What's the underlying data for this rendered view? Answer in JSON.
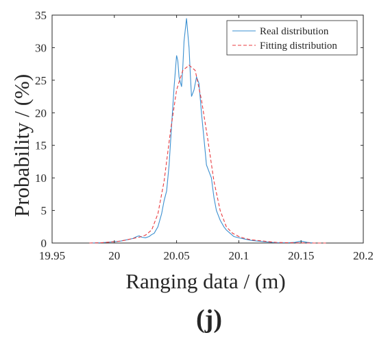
{
  "chart_data": {
    "type": "line",
    "panel_label": "(j)",
    "xlabel": "Ranging data / (m)",
    "ylabel": "Probability / (%)",
    "xlim": [
      19.95,
      20.2
    ],
    "ylim": [
      0,
      35
    ],
    "x_ticks": [
      19.95,
      20,
      20.05,
      20.1,
      20.15,
      20.2
    ],
    "x_tick_labels": [
      "19.95",
      "20",
      "20.05",
      "20.1",
      "20.15",
      "20.2"
    ],
    "y_ticks": [
      0,
      5,
      10,
      15,
      20,
      25,
      30,
      35
    ],
    "y_tick_labels": [
      "0",
      "5",
      "10",
      "15",
      "20",
      "25",
      "30",
      "35"
    ],
    "grid": false,
    "legend_position": "top-right",
    "series": [
      {
        "name": "Real distribution",
        "color": "#3a8fd0",
        "style": "solid",
        "x": [
          19.98,
          19.99,
          20.0,
          20.005,
          20.01,
          20.015,
          20.018,
          20.02,
          20.022,
          20.025,
          20.028,
          20.03,
          20.032,
          20.035,
          20.038,
          20.04,
          20.042,
          20.044,
          20.046,
          20.048,
          20.05,
          20.051,
          20.052,
          20.054,
          20.055,
          20.056,
          20.058,
          20.06,
          20.061,
          20.062,
          20.064,
          20.066,
          20.068,
          20.07,
          20.072,
          20.074,
          20.076,
          20.078,
          20.08,
          20.082,
          20.085,
          20.088,
          20.09,
          20.093,
          20.096,
          20.1,
          20.105,
          20.11,
          20.12,
          20.13,
          20.14,
          20.145,
          20.15,
          20.155,
          20.16
        ],
        "y": [
          0,
          0.05,
          0.2,
          0.3,
          0.5,
          0.7,
          1.0,
          1.1,
          0.9,
          0.8,
          1.0,
          1.3,
          1.5,
          2.5,
          4.5,
          6.5,
          8.0,
          12.0,
          18.0,
          24.0,
          28.8,
          28.0,
          25.5,
          24.0,
          27.0,
          31.0,
          34.5,
          30.0,
          26.0,
          22.5,
          23.5,
          25.5,
          24.5,
          20.0,
          16.0,
          12.0,
          11.0,
          10.0,
          7.0,
          5.0,
          3.5,
          2.5,
          2.0,
          1.5,
          1.0,
          0.8,
          0.6,
          0.4,
          0.2,
          0.05,
          0.05,
          0.1,
          0.3,
          0.1,
          0
        ]
      },
      {
        "name": "Fitting distribution",
        "color": "#e8383d",
        "style": "dashed",
        "x": [
          19.98,
          19.99,
          20.0,
          20.005,
          20.01,
          20.015,
          20.02,
          20.025,
          20.03,
          20.035,
          20.04,
          20.045,
          20.05,
          20.055,
          20.06,
          20.065,
          20.07,
          20.075,
          20.08,
          20.085,
          20.09,
          20.095,
          20.1,
          20.105,
          20.11,
          20.12,
          20.13,
          20.14,
          20.15,
          20.16,
          20.17
        ],
        "y": [
          0,
          0.05,
          0.2,
          0.3,
          0.5,
          0.7,
          0.9,
          1.2,
          2.0,
          4.5,
          9.5,
          17.0,
          23.5,
          26.5,
          27.3,
          26.5,
          22.0,
          16.0,
          9.5,
          5.0,
          2.5,
          1.5,
          1.0,
          0.7,
          0.5,
          0.3,
          0.1,
          0.05,
          0.02,
          0.0,
          0.0
        ]
      }
    ]
  }
}
